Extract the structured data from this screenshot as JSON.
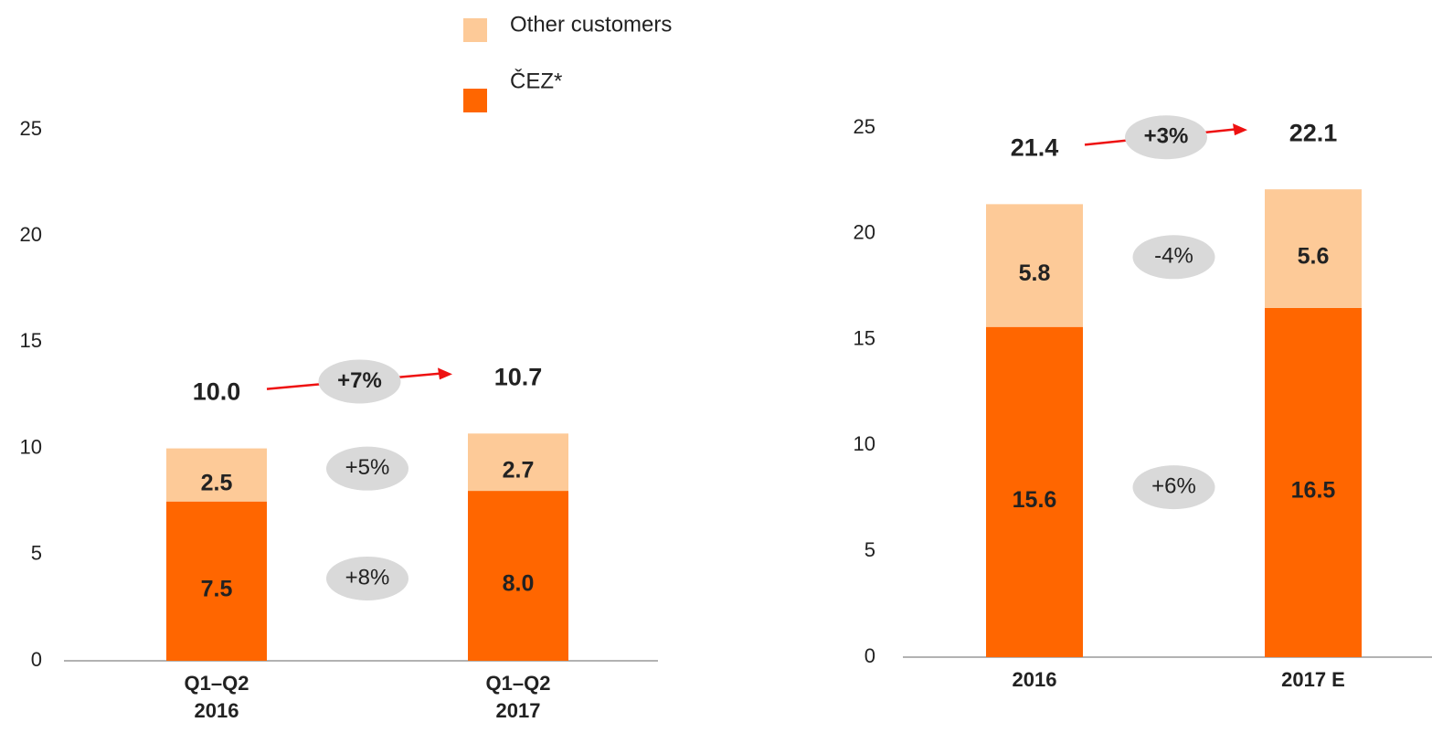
{
  "chart_data": [
    {
      "type": "stacked_bar",
      "categories": [
        "Q1–Q2\n2016",
        "Q1–Q2\n2017"
      ],
      "series": [
        {
          "name": "ČEZ*",
          "color": "#ff6600",
          "values": [
            7.5,
            8.0
          ],
          "value_labels": [
            "7.5",
            "8.0"
          ],
          "change": "+8%"
        },
        {
          "name": "Other customers",
          "color": "#fdca98",
          "values": [
            2.5,
            2.7
          ],
          "change": "+5%"
        }
      ],
      "totals": [
        10,
        10.7
      ],
      "total_labels": [
        "10.0",
        "10.7"
      ],
      "total_change": "+7%",
      "ylim": [
        0,
        25
      ],
      "yticks": [
        0,
        5,
        10,
        15,
        20,
        25
      ]
    },
    {
      "type": "stacked_bar",
      "categories": [
        "2016",
        "2017 E"
      ],
      "series": [
        {
          "color": "#ff6600",
          "values": [
            15.6,
            16.5
          ],
          "change": "+6%"
        },
        {
          "color": "#fdca98",
          "values": [
            5.8,
            5.6
          ],
          "change": "-4%"
        }
      ],
      "totals": [
        21.4,
        22.1
      ],
      "total_change": "+3%",
      "ylim": [
        0,
        25
      ],
      "yticks": [
        0,
        5,
        10,
        15,
        20,
        25
      ]
    }
  ]
}
